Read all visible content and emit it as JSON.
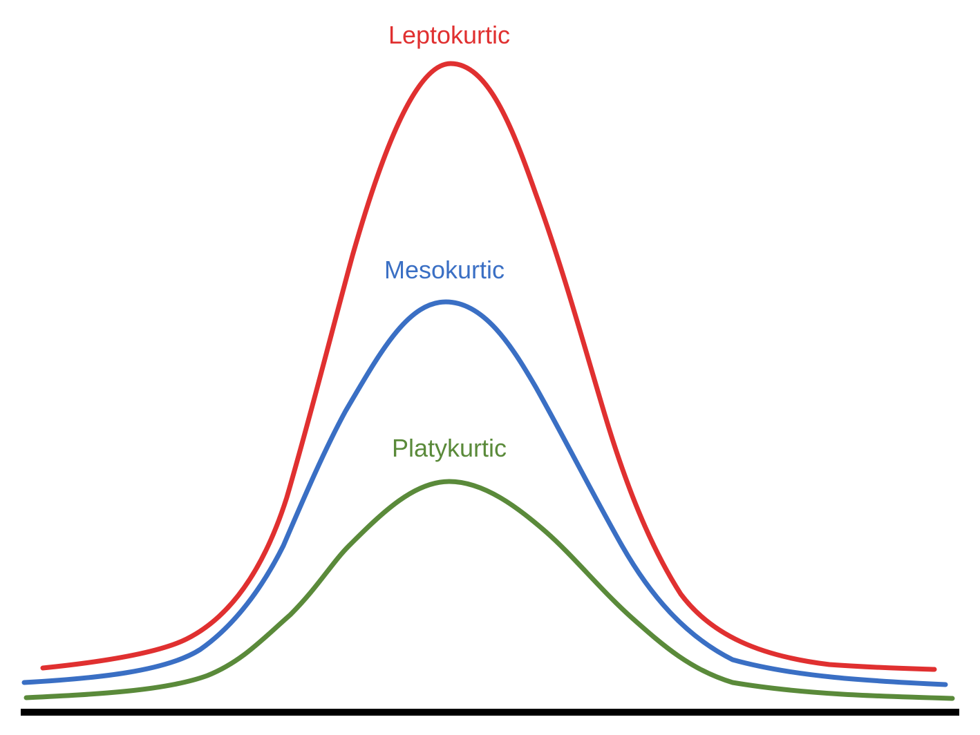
{
  "diagram": {
    "curves": [
      {
        "id": "leptokurtic",
        "label": "Leptokurtic",
        "color": "#e03030"
      },
      {
        "id": "mesokurtic",
        "label": "Mesokurtic",
        "color": "#3a6fc4"
      },
      {
        "id": "platykurtic",
        "label": "Platykurtic",
        "color": "#5a8a3a"
      }
    ],
    "baseline_color": "#000000"
  }
}
